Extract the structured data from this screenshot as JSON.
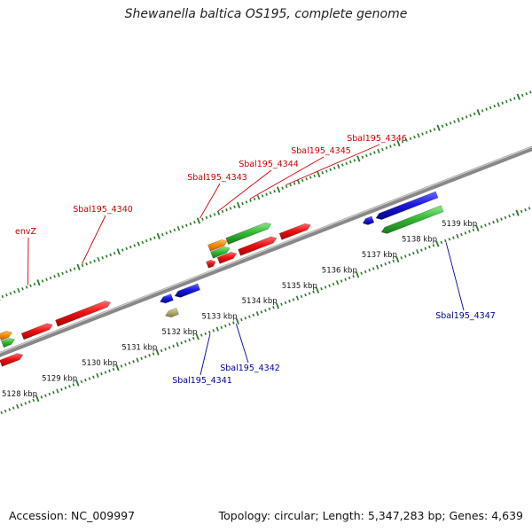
{
  "title": "Shewanella baltica OS195, complete genome",
  "footer": {
    "accession": "Accession: NC_009997",
    "summary": "Topology: circular; Length: 5,347,283 bp; Genes: 4,639"
  },
  "colors": {
    "red": "#ee1111",
    "blue": "#1a1ae0",
    "green": "#33bb33",
    "orange": "#ff8800",
    "khaki": "#b8b070",
    "track": "#888888",
    "tick": "#2a7a2a",
    "label_red": "#cc0000",
    "label_blue": "#000099"
  },
  "scale_labels": [
    {
      "text": "5128 kbp",
      "kbp": 5128
    },
    {
      "text": "5129 kbp",
      "kbp": 5129
    },
    {
      "text": "5130 kbp",
      "kbp": 5130
    },
    {
      "text": "5131 kbp",
      "kbp": 5131
    },
    {
      "text": "5132 kbp",
      "kbp": 5132
    },
    {
      "text": "5133 kbp",
      "kbp": 5133
    },
    {
      "text": "5134 kbp",
      "kbp": 5134
    },
    {
      "text": "5135 kbp",
      "kbp": 5135
    },
    {
      "text": "5136 kbp",
      "kbp": 5136
    },
    {
      "text": "5137 kbp",
      "kbp": 5137
    },
    {
      "text": "5138 kbp",
      "kbp": 5138
    },
    {
      "text": "5139 kbp",
      "kbp": 5139
    }
  ],
  "top_labels": [
    {
      "text": "envZ",
      "kbp": 5128.75
    },
    {
      "text": "Sbal195_4340",
      "kbp": 5130.1
    },
    {
      "text": "Sbal195_4343",
      "kbp": 5133.05
    },
    {
      "text": "Sbal195_4344",
      "kbp": 5133.5
    },
    {
      "text": "Sbal195_4345",
      "kbp": 5134.3
    },
    {
      "text": "Sbal195_4346",
      "kbp": 5135.2
    }
  ],
  "bottom_labels": [
    {
      "text": "Sbal195_4341",
      "kbp": 5132.3
    },
    {
      "text": "Sbal195_4342",
      "kbp": 5132.95
    },
    {
      "text": "Sbal195_4347",
      "kbp": 5138.2
    }
  ],
  "genes": [
    {
      "name": "gene-red-a",
      "color": "red",
      "start": 5127.5,
      "end": 5128.05,
      "row": 1
    },
    {
      "name": "gene-orange-a",
      "color": "orange",
      "start": 5127.7,
      "end": 5128.0,
      "row": -2
    },
    {
      "name": "gene-green-a",
      "color": "green",
      "start": 5127.7,
      "end": 5128.0,
      "row": -1
    },
    {
      "name": "envZ",
      "color": "red",
      "start": 5128.2,
      "end": 5128.95,
      "row": -1
    },
    {
      "name": "Sbal195_4340",
      "color": "red",
      "start": 5129.05,
      "end": 5130.4,
      "row": -1
    },
    {
      "name": "Sbal195_4341a",
      "color": "blue",
      "start": 5131.48,
      "end": 5131.78,
      "row": 1
    },
    {
      "name": "Sbal195_4341b",
      "color": "khaki",
      "start": 5131.48,
      "end": 5131.78,
      "row": 3
    },
    {
      "name": "Sbal195_4342",
      "color": "blue",
      "start": 5131.85,
      "end": 5132.45,
      "row": 1
    },
    {
      "name": "Sbal195_4343",
      "color": "red",
      "start": 5132.82,
      "end": 5133.02,
      "row": -1
    },
    {
      "name": "Sbal195_4344",
      "color": "red",
      "start": 5133.1,
      "end": 5133.55,
      "row": -1
    },
    {
      "name": "Sbal195_4345",
      "color": "red",
      "start": 5133.62,
      "end": 5134.55,
      "row": -1
    },
    {
      "name": "Sbal195_4345-orange",
      "color": "orange",
      "start": 5133.0,
      "end": 5133.45,
      "row": -3
    },
    {
      "name": "Sbal195_4345-green-a",
      "color": "green",
      "start": 5133.0,
      "end": 5133.45,
      "row": -2
    },
    {
      "name": "Sbal195_4345-green-b",
      "color": "green",
      "start": 5133.45,
      "end": 5134.55,
      "row": -3
    },
    {
      "name": "Sbal195_4346",
      "color": "red",
      "start": 5134.65,
      "end": 5135.4,
      "row": -1
    },
    {
      "name": "Sbal195_4347a",
      "color": "blue",
      "start": 5136.55,
      "end": 5136.8,
      "row": 1
    },
    {
      "name": "Sbal195_4347b",
      "color": "blue",
      "start": 5136.88,
      "end": 5138.4,
      "row": 1
    },
    {
      "name": "gene-green-b",
      "color": "green",
      "start": 5136.88,
      "end": 5138.4,
      "row": 3
    }
  ]
}
